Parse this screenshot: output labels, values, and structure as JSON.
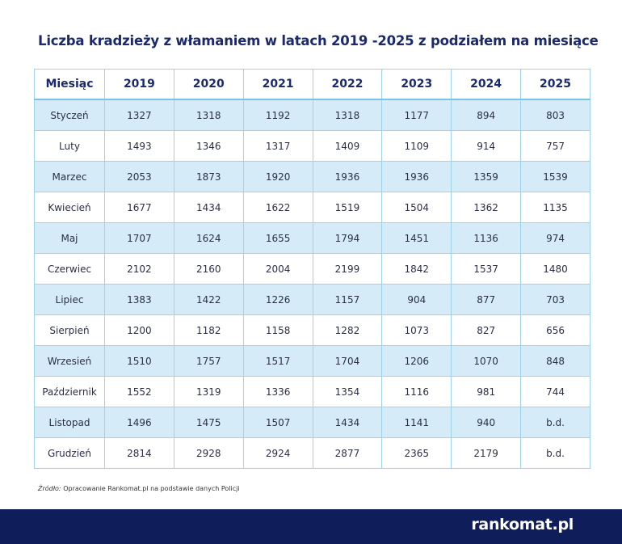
{
  "header": {
    "title": "Liczba kradzieży z włamaniem w latach 2019 -2025 z podziałem na miesiące"
  },
  "table": {
    "columns": [
      "Miesiąc",
      "2019",
      "2020",
      "2021",
      "2022",
      "2023",
      "2024",
      "2025"
    ],
    "rows": [
      [
        "Styczeń",
        "1327",
        "1318",
        "1192",
        "1318",
        "1177",
        "894",
        "803"
      ],
      [
        "Luty",
        "1493",
        "1346",
        "1317",
        "1409",
        "1109",
        "914",
        "757"
      ],
      [
        "Marzec",
        "2053",
        "1873",
        "1920",
        "1936",
        "1936",
        "1359",
        "1539"
      ],
      [
        "Kwiecień",
        "1677",
        "1434",
        "1622",
        "1519",
        "1504",
        "1362",
        "1135"
      ],
      [
        "Maj",
        "1707",
        "1624",
        "1655",
        "1794",
        "1451",
        "1136",
        "974"
      ],
      [
        "Czerwiec",
        "2102",
        "2160",
        "2004",
        "2199",
        "1842",
        "1537",
        "1480"
      ],
      [
        "Lipiec",
        "1383",
        "1422",
        "1226",
        "1157",
        "904",
        "877",
        "703"
      ],
      [
        "Sierpień",
        "1200",
        "1182",
        "1158",
        "1282",
        "1073",
        "827",
        "656"
      ],
      [
        "Wrzesień",
        "1510",
        "1757",
        "1517",
        "1704",
        "1206",
        "1070",
        "848"
      ],
      [
        "Październik",
        "1552",
        "1319",
        "1336",
        "1354",
        "1116",
        "981",
        "744"
      ],
      [
        "Listopad",
        "1496",
        "1475",
        "1507",
        "1434",
        "1141",
        "940",
        "b.d."
      ],
      [
        "Grudzień",
        "2814",
        "2928",
        "2924",
        "2877",
        "2365",
        "2179",
        "b.d."
      ]
    ]
  },
  "source": {
    "label": "Źródło:",
    "text": "Opracowanie Rankomat.pl na podstawie danych Policji"
  },
  "footer": {
    "logo": "rankomat.pl"
  }
}
